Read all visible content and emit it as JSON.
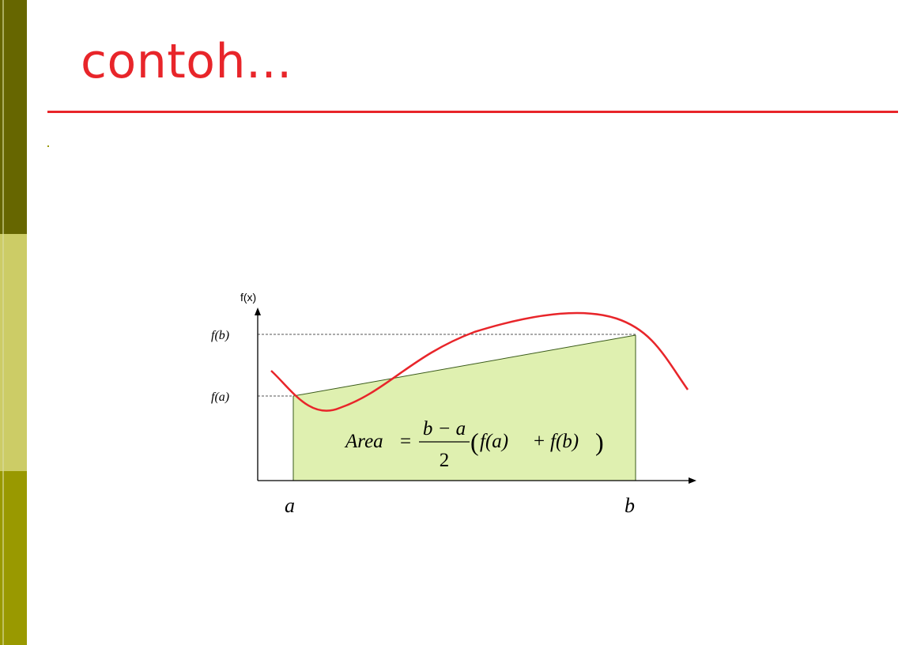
{
  "slide": {
    "title": "contoh...",
    "colors": {
      "title": "#e8252a",
      "rule": "#e8252a",
      "sidebar_top": "#666600",
      "sidebar_mid": "#cccc66",
      "sidebar_bottom": "#999900"
    }
  },
  "diagram": {
    "y_axis_label": "f(x)",
    "fb_label": "f(b)",
    "fa_label": "f(a)",
    "a_label": "a",
    "b_label": "b",
    "formula": {
      "lhs": "Area",
      "equals": "=",
      "numerator": "b − a",
      "denominator": "2",
      "open_paren": "(",
      "fa": "f(a)",
      "plus": "+",
      "fb": "f(b)",
      "close_paren": ")"
    },
    "colors": {
      "fill": "#dff0b0",
      "curve": "#e8252a",
      "axis": "#000000",
      "guide": "#555555"
    }
  }
}
